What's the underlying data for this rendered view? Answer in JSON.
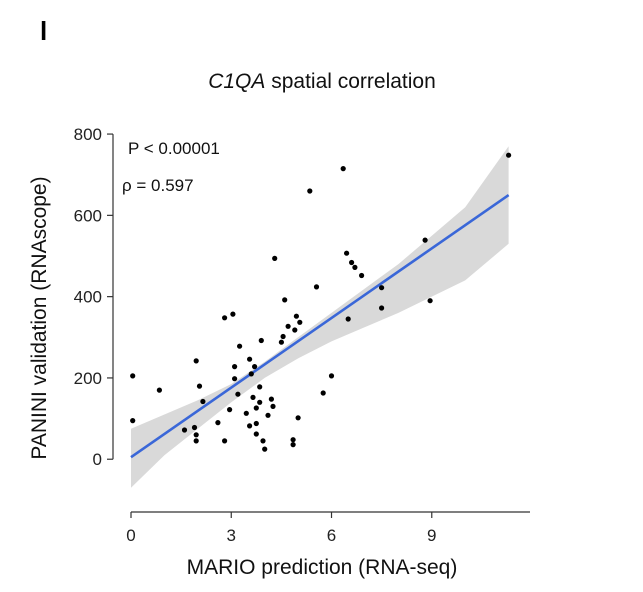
{
  "panel_label": "l",
  "chart_data": {
    "type": "scatter",
    "title_italic": "C1QA",
    "title_rest": " spatial correlation",
    "xlabel": "MARIO prediction (RNA-seq)",
    "ylabel": "PANINI validation (RNAscope)",
    "xlim": [
      0,
      11.7
    ],
    "ylim": [
      -120,
      810
    ],
    "x_ticks": [
      0,
      3,
      6,
      9
    ],
    "y_ticks": [
      0,
      200,
      400,
      600,
      800
    ],
    "annotations": [
      {
        "key": "p_value",
        "text": "P < 0.00001"
      },
      {
        "key": "rho",
        "text": "ρ = 0.597"
      }
    ],
    "fit_line": {
      "color": "#3a67d8",
      "x": [
        0,
        11.3
      ],
      "y": [
        5,
        650
      ]
    },
    "confidence_band": {
      "color": "#d9d9d9",
      "x": [
        0,
        1,
        2,
        3,
        4,
        5,
        6,
        7,
        8,
        9,
        10,
        11.3
      ],
      "lower": [
        -70,
        10,
        75,
        140,
        200,
        248,
        290,
        325,
        360,
        400,
        440,
        530
      ],
      "upper": [
        75,
        110,
        145,
        185,
        240,
        300,
        360,
        420,
        480,
        550,
        620,
        770
      ]
    },
    "points": [
      {
        "x": 0.05,
        "y": 205
      },
      {
        "x": 0.05,
        "y": 95
      },
      {
        "x": 0.85,
        "y": 170
      },
      {
        "x": 1.6,
        "y": 72
      },
      {
        "x": 1.9,
        "y": 78
      },
      {
        "x": 1.95,
        "y": 60
      },
      {
        "x": 1.95,
        "y": 45
      },
      {
        "x": 1.95,
        "y": 242
      },
      {
        "x": 2.05,
        "y": 180
      },
      {
        "x": 2.15,
        "y": 142
      },
      {
        "x": 2.6,
        "y": 90
      },
      {
        "x": 2.8,
        "y": 45
      },
      {
        "x": 2.8,
        "y": 348
      },
      {
        "x": 2.95,
        "y": 122
      },
      {
        "x": 3.05,
        "y": 357
      },
      {
        "x": 3.1,
        "y": 228
      },
      {
        "x": 3.1,
        "y": 198
      },
      {
        "x": 3.2,
        "y": 160
      },
      {
        "x": 3.25,
        "y": 278
      },
      {
        "x": 3.45,
        "y": 113
      },
      {
        "x": 3.55,
        "y": 246
      },
      {
        "x": 3.55,
        "y": 82
      },
      {
        "x": 3.6,
        "y": 210
      },
      {
        "x": 3.65,
        "y": 152
      },
      {
        "x": 3.7,
        "y": 228
      },
      {
        "x": 3.75,
        "y": 126
      },
      {
        "x": 3.75,
        "y": 88
      },
      {
        "x": 3.75,
        "y": 62
      },
      {
        "x": 3.85,
        "y": 178
      },
      {
        "x": 3.85,
        "y": 140
      },
      {
        "x": 3.9,
        "y": 292
      },
      {
        "x": 3.95,
        "y": 45
      },
      {
        "x": 4.0,
        "y": 25
      },
      {
        "x": 4.1,
        "y": 108
      },
      {
        "x": 4.2,
        "y": 148
      },
      {
        "x": 4.25,
        "y": 130
      },
      {
        "x": 4.3,
        "y": 494
      },
      {
        "x": 4.5,
        "y": 288
      },
      {
        "x": 4.55,
        "y": 302
      },
      {
        "x": 4.6,
        "y": 392
      },
      {
        "x": 4.7,
        "y": 327
      },
      {
        "x": 4.85,
        "y": 48
      },
      {
        "x": 4.85,
        "y": 36
      },
      {
        "x": 4.9,
        "y": 318
      },
      {
        "x": 4.95,
        "y": 352
      },
      {
        "x": 5.0,
        "y": 102
      },
      {
        "x": 5.05,
        "y": 337
      },
      {
        "x": 5.35,
        "y": 660
      },
      {
        "x": 5.55,
        "y": 424
      },
      {
        "x": 5.75,
        "y": 163
      },
      {
        "x": 6.0,
        "y": 205
      },
      {
        "x": 6.35,
        "y": 715
      },
      {
        "x": 6.45,
        "y": 507
      },
      {
        "x": 6.5,
        "y": 345
      },
      {
        "x": 6.6,
        "y": 484
      },
      {
        "x": 6.7,
        "y": 472
      },
      {
        "x": 6.9,
        "y": 452
      },
      {
        "x": 7.5,
        "y": 422
      },
      {
        "x": 7.5,
        "y": 372
      },
      {
        "x": 8.8,
        "y": 539
      },
      {
        "x": 8.95,
        "y": 390
      },
      {
        "x": 11.3,
        "y": 748
      }
    ]
  }
}
